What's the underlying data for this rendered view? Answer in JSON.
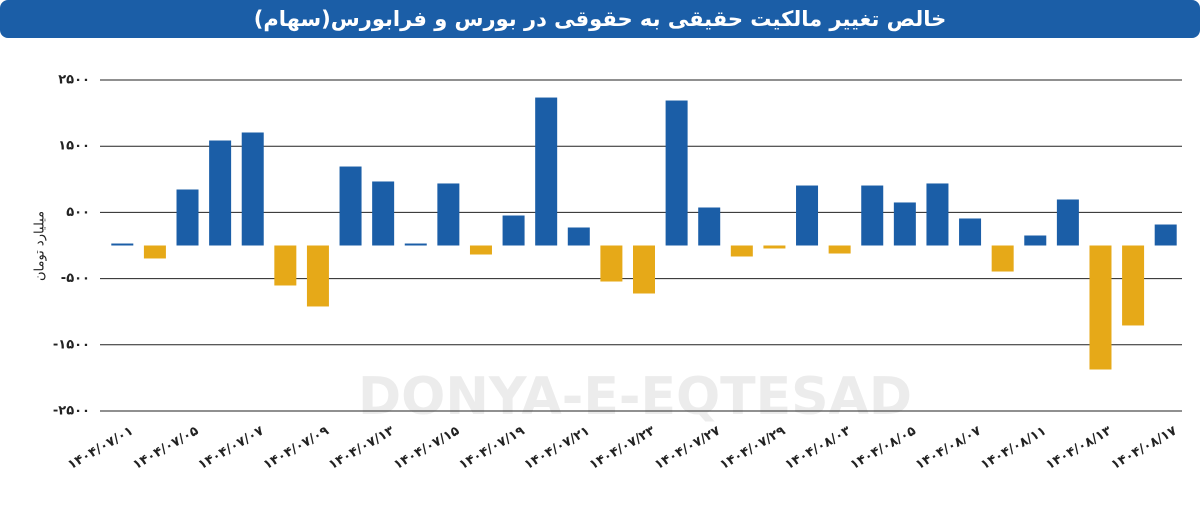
{
  "chart_data": {
    "type": "bar",
    "title": "خالص تغییر مالکیت حقیقی به حقوقی در بورس و فرابورس(سهام)",
    "y_label": "میلیارد تومان",
    "watermark": "DONYA-E-EQTESAD",
    "categories": [
      "۱۴۰۴/۰۷/۰۱",
      null,
      "۱۴۰۴/۰۷/۰۵",
      null,
      "۱۴۰۴/۰۷/۰۷",
      null,
      "۱۴۰۴/۰۷/۰۹",
      null,
      "۱۴۰۴/۰۷/۱۳",
      null,
      "۱۴۰۴/۰۷/۱۵",
      null,
      "۱۴۰۴/۰۷/۱۹",
      null,
      "۱۴۰۴/۰۷/۲۱",
      null,
      "۱۴۰۴/۰۷/۲۳",
      null,
      "۱۴۰۴/۰۷/۲۷",
      null,
      "۱۴۰۴/۰۷/۲۹",
      null,
      "۱۴۰۴/۰۸/۰۳",
      null,
      "۱۴۰۴/۰۸/۰۵",
      null,
      "۱۴۰۴/۰۸/۰۷",
      null,
      "۱۴۰۴/۰۸/۱۱",
      null,
      "۱۴۰۴/۰۸/۱۳",
      null,
      "۱۴۰۴/۰۸/۱۷"
    ],
    "values": [
      30,
      -196,
      846,
      1586,
      1707,
      -604,
      -921,
      1193,
      967,
      30,
      937,
      -136,
      453,
      2235,
      272,
      -544,
      -725,
      2190,
      574,
      -166,
      -45,
      906,
      -121,
      906,
      650,
      937,
      408,
      -393,
      151,
      695,
      -1873,
      -1208,
      317
    ],
    "positive_color": "#1b5ea7",
    "negative_color": "#e6a918",
    "ylim": [
      -2500,
      2500
    ],
    "yticks": [
      {
        "value": 2500,
        "label": "۲۵۰۰"
      },
      {
        "value": 1500,
        "label": "۱۵۰۰"
      },
      {
        "value": 500,
        "label": "۵۰۰"
      },
      {
        "value": -500,
        "label": "-۵۰۰"
      },
      {
        "value": -1500,
        "label": "-۱۵۰۰"
      },
      {
        "value": -2500,
        "label": "-۲۵۰۰"
      }
    ],
    "grid": true
  }
}
